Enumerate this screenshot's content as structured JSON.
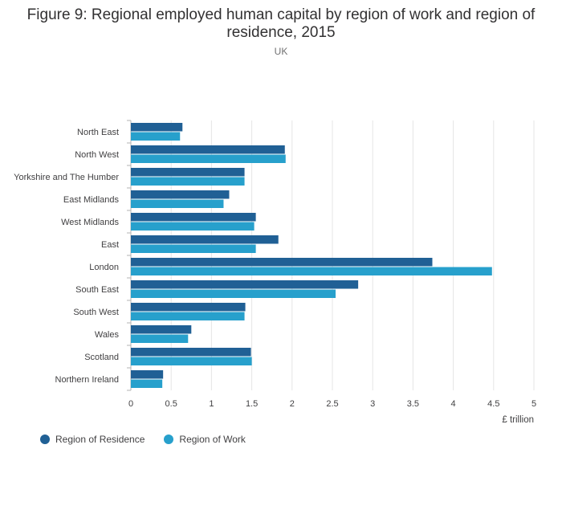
{
  "title_line1": "Figure 9: Regional employed human capital by region of work and region of",
  "title_line2": "residence, 2015",
  "subtitle": "UK",
  "chart_data": {
    "type": "bar",
    "orientation": "horizontal",
    "categories": [
      "North East",
      "North West",
      "Yorkshire and The Humber",
      "East Midlands",
      "West Midlands",
      "East",
      "London",
      "South East",
      "South West",
      "Wales",
      "Scotland",
      "Northern Ireland"
    ],
    "series": [
      {
        "name": "Region of Residence",
        "color": "#206095",
        "values": [
          0.64,
          1.91,
          1.41,
          1.22,
          1.55,
          1.83,
          3.74,
          2.82,
          1.42,
          0.75,
          1.49,
          0.4
        ]
      },
      {
        "name": "Region of Work",
        "color": "#27a0cc",
        "values": [
          0.61,
          1.92,
          1.41,
          1.15,
          1.53,
          1.55,
          4.48,
          2.54,
          1.41,
          0.71,
          1.5,
          0.39
        ]
      }
    ],
    "xlabel": "£ trillion",
    "xlim": [
      0,
      5
    ],
    "xticks": [
      "0",
      "0.5",
      "1",
      "1.5",
      "2",
      "2.5",
      "3",
      "3.5",
      "4",
      "4.5",
      "5"
    ],
    "grid": "vertical",
    "legend_position": "bottom-left"
  }
}
